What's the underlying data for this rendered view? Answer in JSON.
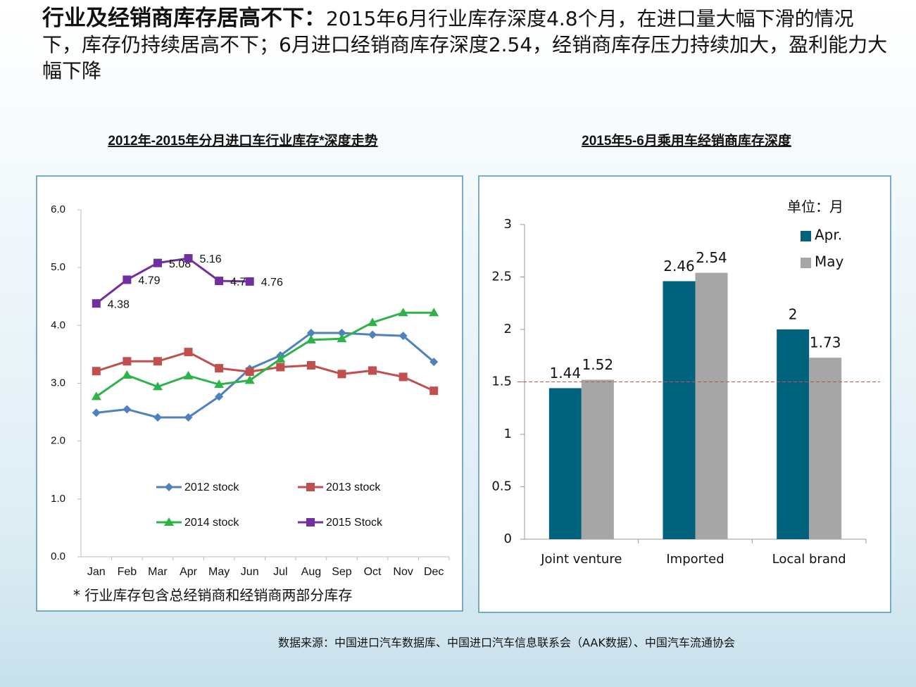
{
  "header": {
    "title_bold": "行业及经销商库存居高不下：",
    "title_rest": "2015年6月行业库存深度4.8个月，在进口量大幅下滑的情况下，库存仍持续居高不下；6月进口经销商库存深度2.54，经销商库存压力持续加大，盈利能力大幅下降"
  },
  "source": "数据来源：中国进口汽车数据库、中国进口汽车信息联系会（AAK数据）、中国汽车流通协会",
  "chart_data": [
    {
      "type": "line",
      "title": "2012年-2015年分月进口车行业库存*深度走势",
      "footnote": "* 行业库存包含总经销商和经销商两部分库存",
      "categories": [
        "Jan",
        "Feb",
        "Mar",
        "Apr",
        "May",
        "Jun",
        "Jul",
        "Aug",
        "Sep",
        "Oct",
        "Nov",
        "Dec"
      ],
      "series": [
        {
          "name": "2012 stock",
          "color": "#4f81bd",
          "marker": "diamond",
          "values": [
            2.49,
            2.55,
            2.41,
            2.41,
            2.77,
            3.25,
            3.48,
            3.87,
            3.87,
            3.84,
            3.82,
            3.37
          ]
        },
        {
          "name": "2013 stock",
          "color": "#c0504d",
          "marker": "square",
          "values": [
            3.21,
            3.38,
            3.38,
            3.54,
            3.26,
            3.2,
            3.28,
            3.31,
            3.16,
            3.22,
            3.11,
            2.87
          ]
        },
        {
          "name": "2014 stock",
          "color": "#2db34a",
          "marker": "triangle",
          "values": [
            2.77,
            3.14,
            2.94,
            3.13,
            2.98,
            3.05,
            3.42,
            3.75,
            3.77,
            4.05,
            4.22,
            4.22
          ]
        },
        {
          "name": "2015 Stock",
          "color": "#7030a0",
          "marker": "square",
          "show_labels": true,
          "values": [
            4.38,
            4.79,
            5.08,
            5.16,
            4.77,
            4.76,
            null,
            null,
            null,
            null,
            null,
            null
          ]
        }
      ],
      "ylim": [
        0,
        6
      ],
      "yticks": [
        {
          "value": 0,
          "label": "0.0"
        },
        {
          "value": 1,
          "label": "1.0"
        },
        {
          "value": 2,
          "label": "2.0"
        },
        {
          "value": 3,
          "label": "3.0"
        },
        {
          "value": 4,
          "label": "4.0"
        },
        {
          "value": 5,
          "label": "5.0"
        },
        {
          "value": 6,
          "label": "6.0"
        }
      ],
      "legend": "bottom"
    },
    {
      "type": "bar",
      "title": "2015年5-6月乘用车经销商库存深度",
      "annotation": "单位：月",
      "categories": [
        "Joint venture",
        "Imported",
        "Local brand"
      ],
      "series": [
        {
          "name": "Apr.",
          "color": "#00627d",
          "values": [
            1.44,
            2.46,
            2
          ]
        },
        {
          "name": "May",
          "color": "#a6a6a6",
          "values": [
            1.52,
            2.54,
            1.73
          ]
        }
      ],
      "ylim": [
        0,
        3
      ],
      "yticks": [
        0,
        0.5,
        1,
        1.5,
        2,
        2.5,
        3
      ],
      "reference_line": 1.5,
      "reference_color": "#c0504d",
      "legend": "top-right"
    }
  ]
}
